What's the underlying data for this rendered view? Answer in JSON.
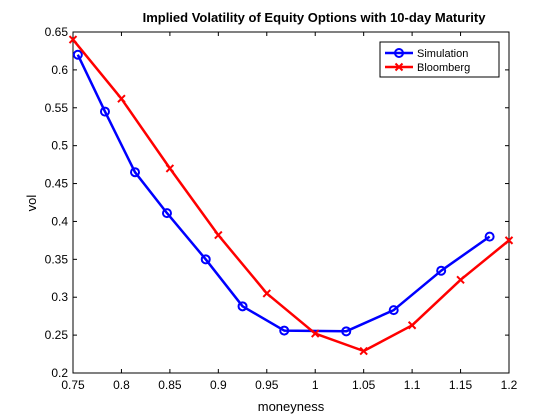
{
  "chart_data": {
    "type": "line",
    "title": "Implied Volatility of Equity Options with 10-day Maturity",
    "xlabel": "moneyness",
    "ylabel": "vol",
    "xlim": [
      0.75,
      1.2
    ],
    "ylim": [
      0.2,
      0.65
    ],
    "xticks": [
      "0.75",
      "0.8",
      "0.85",
      "0.9",
      "0.95",
      "1",
      "1.05",
      "1.1",
      "1.15",
      "1.2"
    ],
    "yticks": [
      "0.2",
      "0.25",
      "0.3",
      "0.35",
      "0.4",
      "0.45",
      "0.5",
      "0.55",
      "0.6",
      "0.65"
    ],
    "grid": false,
    "legend_position": "top-right",
    "series": [
      {
        "name": "Simulation",
        "color": "#0000ff",
        "marker": "circle",
        "x": [
          0.755,
          0.783,
          0.814,
          0.847,
          0.887,
          0.925,
          0.968,
          1.032,
          1.081,
          1.13,
          1.18
        ],
        "y": [
          0.62,
          0.545,
          0.465,
          0.411,
          0.35,
          0.288,
          0.256,
          0.255,
          0.283,
          0.335,
          0.38
        ]
      },
      {
        "name": "Bloomberg",
        "color": "#ff0000",
        "marker": "x",
        "x": [
          0.75,
          0.8,
          0.85,
          0.9,
          0.95,
          1.0,
          1.05,
          1.1,
          1.15,
          1.2
        ],
        "y": [
          0.64,
          0.562,
          0.47,
          0.382,
          0.305,
          0.252,
          0.229,
          0.263,
          0.323,
          0.375
        ]
      }
    ]
  }
}
